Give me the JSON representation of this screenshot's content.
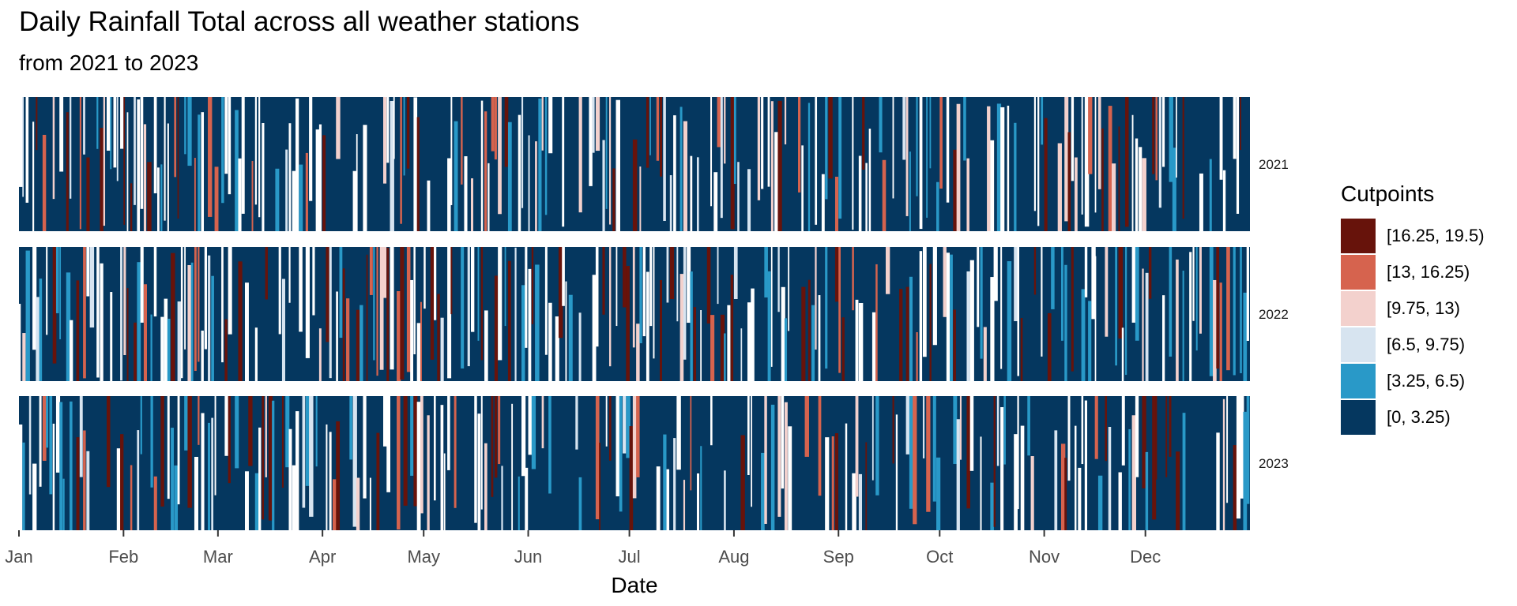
{
  "title": "Daily Rainfall Total across all weather stations",
  "subtitle": "from 2021 to 2023",
  "chart_data": {
    "type": "area",
    "title": "Daily Rainfall Total across all weather stations",
    "subtitle": "from 2021 to 2023",
    "xlabel": "Date",
    "ylabel": "",
    "x_ticks": [
      "Jan",
      "Feb",
      "Mar",
      "Apr",
      "May",
      "Jun",
      "Jul",
      "Aug",
      "Sep",
      "Oct",
      "Nov",
      "Dec"
    ],
    "facets": [
      "2021",
      "2022",
      "2023"
    ],
    "legend": {
      "title": "Cutpoints",
      "position": "right",
      "entries": [
        {
          "label": "[16.25, 19.5)",
          "color": "#67130b"
        },
        {
          "label": "[13, 16.25)",
          "color": "#d6634e"
        },
        {
          "label": "[9.75, 13)",
          "color": "#f3d1cd"
        },
        {
          "label": "[6.5, 9.75)",
          "color": "#d7e4f0"
        },
        {
          "label": "[3.25, 6.5)",
          "color": "#2999c8"
        },
        {
          "label": "[0, 3.25)",
          "color": "#05375f"
        }
      ]
    },
    "grid": false
  }
}
